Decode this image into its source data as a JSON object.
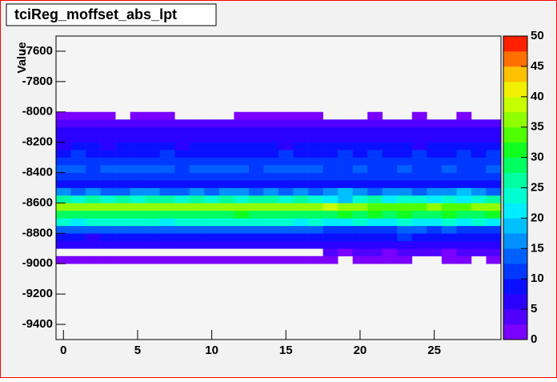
{
  "chart_data": {
    "type": "heatmap",
    "title": "tciReg_moffset_abs_lpt",
    "y_label": "Value",
    "xbins": [
      -0.5,
      0.5,
      1.5,
      2.5,
      3.5,
      4.5,
      5.5,
      6.5,
      7.5,
      8.5,
      9.5,
      10.5,
      11.5,
      12.5,
      13.5,
      14.5,
      15.5,
      16.5,
      17.5,
      18.5,
      19.5,
      20.5,
      21.5,
      22.5,
      23.5,
      24.5,
      25.5,
      26.5,
      27.5,
      28.5,
      29.5
    ],
    "ybins": [
      -9000,
      -8950,
      -8900,
      -8850,
      -8800,
      -8750,
      -8700,
      -8650,
      -8600,
      -8550,
      -8500,
      -8450,
      -8400,
      -8350,
      -8300,
      -8250,
      -8200,
      -8150,
      -8100,
      -8050,
      -8000
    ],
    "z": [
      [
        2,
        2,
        2,
        2,
        2,
        2,
        2,
        2,
        2,
        2,
        2,
        2,
        2,
        2,
        2,
        2,
        2,
        2,
        2,
        null,
        2,
        2,
        2,
        2,
        null,
        null,
        2,
        2,
        null,
        2
      ],
      [
        null,
        null,
        null,
        null,
        null,
        null,
        null,
        null,
        null,
        null,
        null,
        null,
        null,
        null,
        null,
        null,
        null,
        null,
        3,
        2,
        3,
        3,
        2,
        3,
        3,
        3,
        2,
        3,
        3,
        3
      ],
      [
        5,
        5,
        6,
        5,
        5,
        5,
        5,
        5,
        5,
        5,
        5,
        5,
        5,
        5,
        5,
        5,
        5,
        5,
        6,
        5,
        5,
        6,
        5,
        6,
        5,
        5,
        6,
        5,
        5,
        6
      ],
      [
        8,
        8,
        7,
        8,
        8,
        8,
        8,
        8,
        8,
        8,
        8,
        8,
        8,
        8,
        8,
        8,
        8,
        8,
        9,
        8,
        9,
        8,
        8,
        10,
        9,
        8,
        9,
        8,
        9,
        8
      ],
      [
        13,
        14,
        13,
        13,
        14,
        14,
        13,
        14,
        14,
        13,
        14,
        13,
        13,
        14,
        14,
        13,
        14,
        13,
        11,
        12,
        11,
        12,
        11,
        14,
        13,
        11,
        13,
        12,
        11,
        12
      ],
      [
        23,
        22,
        24,
        23,
        24,
        23,
        23,
        22,
        23,
        24,
        23,
        23,
        23,
        24,
        23,
        23,
        22,
        23,
        20,
        22,
        24,
        21,
        22,
        23,
        20,
        22,
        23,
        21,
        24,
        22
      ],
      [
        28,
        29,
        28,
        28,
        29,
        28,
        29,
        28,
        28,
        29,
        28,
        28,
        30,
        29,
        28,
        29,
        28,
        28,
        29,
        30,
        28,
        31,
        29,
        30,
        28,
        29,
        30,
        28,
        29,
        30
      ],
      [
        37,
        36,
        37,
        37,
        37,
        36,
        37,
        37,
        37,
        37,
        37,
        37,
        36,
        37,
        37,
        37,
        37,
        37,
        38,
        36,
        37,
        33,
        34,
        33,
        34,
        36,
        34,
        33,
        36,
        35
      ],
      [
        25,
        24,
        25,
        24,
        25,
        24,
        25,
        25,
        24,
        25,
        24,
        25,
        24,
        25,
        25,
        24,
        25,
        24,
        22,
        19,
        23,
        25,
        22,
        24,
        23,
        22,
        24,
        22,
        23,
        25
      ],
      [
        15,
        14,
        15,
        14,
        14,
        15,
        15,
        14,
        14,
        15,
        14,
        15,
        15,
        14,
        15,
        14,
        15,
        14,
        15,
        18,
        15,
        14,
        15,
        16,
        14,
        15,
        16,
        18,
        15,
        14
      ],
      [
        9,
        8,
        9,
        9,
        8,
        9,
        9,
        8,
        9,
        9,
        8,
        9,
        9,
        9,
        8,
        9,
        9,
        9,
        8,
        9,
        9,
        8,
        9,
        9,
        8,
        9,
        9,
        8,
        9,
        9
      ],
      [
        12,
        12,
        11,
        12,
        12,
        12,
        11,
        12,
        12,
        12,
        12,
        11,
        12,
        12,
        12,
        12,
        11,
        12,
        12,
        12,
        12,
        12,
        11,
        12,
        12,
        12,
        11,
        12,
        12,
        12
      ],
      [
        13,
        13,
        12,
        13,
        13,
        13,
        13,
        13,
        12,
        13,
        13,
        13,
        13,
        12,
        13,
        13,
        13,
        13,
        12,
        12,
        13,
        12,
        12,
        13,
        12,
        12,
        13,
        12,
        12,
        13
      ],
      [
        11,
        11,
        12,
        11,
        11,
        11,
        12,
        11,
        11,
        11,
        11,
        11,
        12,
        11,
        11,
        11,
        11,
        11,
        11,
        11,
        11,
        11,
        11,
        11,
        12,
        11,
        11,
        11,
        11,
        11
      ],
      [
        9,
        10,
        9,
        9,
        9,
        9,
        9,
        10,
        9,
        9,
        9,
        9,
        9,
        9,
        9,
        10,
        9,
        9,
        9,
        10,
        9,
        10,
        9,
        9,
        10,
        9,
        9,
        10,
        9,
        10
      ],
      [
        7,
        8,
        8,
        7,
        8,
        8,
        8,
        8,
        7,
        8,
        8,
        8,
        8,
        8,
        8,
        7,
        8,
        8,
        8,
        8,
        8,
        8,
        8,
        8,
        7,
        8,
        8,
        8,
        8,
        8
      ],
      [
        7,
        6,
        7,
        7,
        7,
        6,
        7,
        7,
        7,
        7,
        7,
        7,
        7,
        7,
        6,
        7,
        7,
        7,
        7,
        7,
        7,
        7,
        7,
        7,
        7,
        7,
        7,
        7,
        7,
        7
      ],
      [
        6,
        6,
        6,
        6,
        6,
        6,
        6,
        6,
        6,
        6,
        6,
        6,
        6,
        6,
        6,
        6,
        6,
        6,
        5,
        6,
        6,
        6,
        6,
        6,
        6,
        6,
        6,
        6,
        6,
        6
      ],
      [
        4,
        4,
        4,
        3,
        4,
        4,
        4,
        4,
        3,
        3,
        3,
        3,
        4,
        4,
        4,
        3,
        3,
        3,
        4,
        4,
        4,
        4,
        4,
        4,
        3,
        3,
        4,
        4,
        4,
        4
      ],
      [
        2,
        2,
        2,
        2,
        null,
        2,
        2,
        2,
        null,
        null,
        null,
        null,
        2,
        2,
        2,
        2,
        2,
        2,
        null,
        null,
        null,
        2,
        null,
        null,
        2,
        null,
        null,
        2,
        null,
        null
      ]
    ],
    "xlim": [
      -0.5,
      29.5
    ],
    "xticks": [
      0,
      5,
      10,
      15,
      20,
      25
    ],
    "ylim": [
      -9500,
      -7500
    ],
    "yticks": [
      -9400,
      -9200,
      -9000,
      -8800,
      -8600,
      -8400,
      -8200,
      -8000,
      -7800,
      -7600
    ],
    "zlim": [
      0,
      50
    ],
    "zticks": [
      0,
      5,
      10,
      15,
      20,
      25,
      30,
      35,
      40,
      45,
      50
    ],
    "palette": [
      "#7a00ff",
      "#5000ff",
      "#2a00ff",
      "#0a10ff",
      "#0038ff",
      "#0060ff",
      "#0090ff",
      "#00c0ff",
      "#00eeff",
      "#00ffd0",
      "#00ffa0",
      "#00ff60",
      "#10ff20",
      "#50ff00",
      "#90ff00",
      "#c8ff00",
      "#f0f000",
      "#ffc000",
      "#ff7000",
      "#ff2000"
    ]
  }
}
